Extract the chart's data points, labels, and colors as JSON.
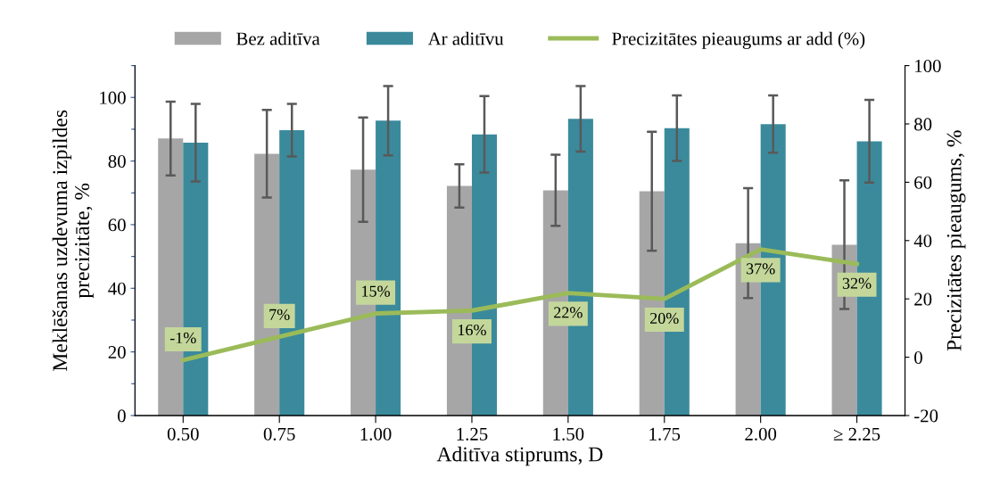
{
  "chart_data": {
    "type": "bar",
    "categories": [
      "0.50",
      "0.75",
      "1.00",
      "1.25",
      "1.50",
      "1.75",
      "2.00",
      "≥ 2.25"
    ],
    "xlabel": "Aditīva stiprums, D",
    "ylabel": "Meklēšanas uzdevuma izpildes\nprecizitāte, %",
    "y2label": "Precizitātes pieaugums, %",
    "ylim": [
      0,
      110
    ],
    "yticks": [
      0,
      {
        "value": 10,
        "label": null
      },
      20,
      {
        "value": 30,
        "label": null
      },
      40,
      {
        "value": 50,
        "label": null
      },
      60,
      {
        "value": 70,
        "label": null
      },
      80,
      {
        "value": 90,
        "label": null
      },
      100,
      {
        "value": 110,
        "label": null
      }
    ],
    "y2lim": [
      -20,
      100
    ],
    "y2ticks": [
      -20,
      0,
      20,
      40,
      60,
      80,
      100
    ],
    "legend": "top",
    "grid": false,
    "series": [
      {
        "name": "Bez aditīva",
        "color": "#a6a6a6",
        "values": [
          87.1,
          82.3,
          77.3,
          72.2,
          70.8,
          70.5,
          54.2,
          53.7
        ],
        "errors": [
          11.6,
          13.8,
          16.4,
          6.8,
          11.2,
          18.7,
          17.3,
          20.2
        ]
      },
      {
        "name": "Ar aditīvu",
        "color": "#3a8a9c",
        "values": [
          85.8,
          89.7,
          92.7,
          88.4,
          93.3,
          90.3,
          91.6,
          86.2
        ],
        "errors": [
          12.2,
          8.3,
          10.9,
          12.0,
          10.3,
          10.3,
          9.0,
          13.0
        ]
      },
      {
        "name": "Precizitātes pieaugums ar add (%)",
        "type": "line",
        "axis": "y2",
        "color": "#9bbb59",
        "marker": "none",
        "line_style": "solid",
        "values": [
          -1,
          7,
          15,
          16,
          22,
          20,
          37,
          32
        ],
        "value_labels": [
          "-1%",
          "7%",
          "15%",
          "16%",
          "22%",
          "20%",
          "37%",
          "32%"
        ]
      }
    ]
  }
}
